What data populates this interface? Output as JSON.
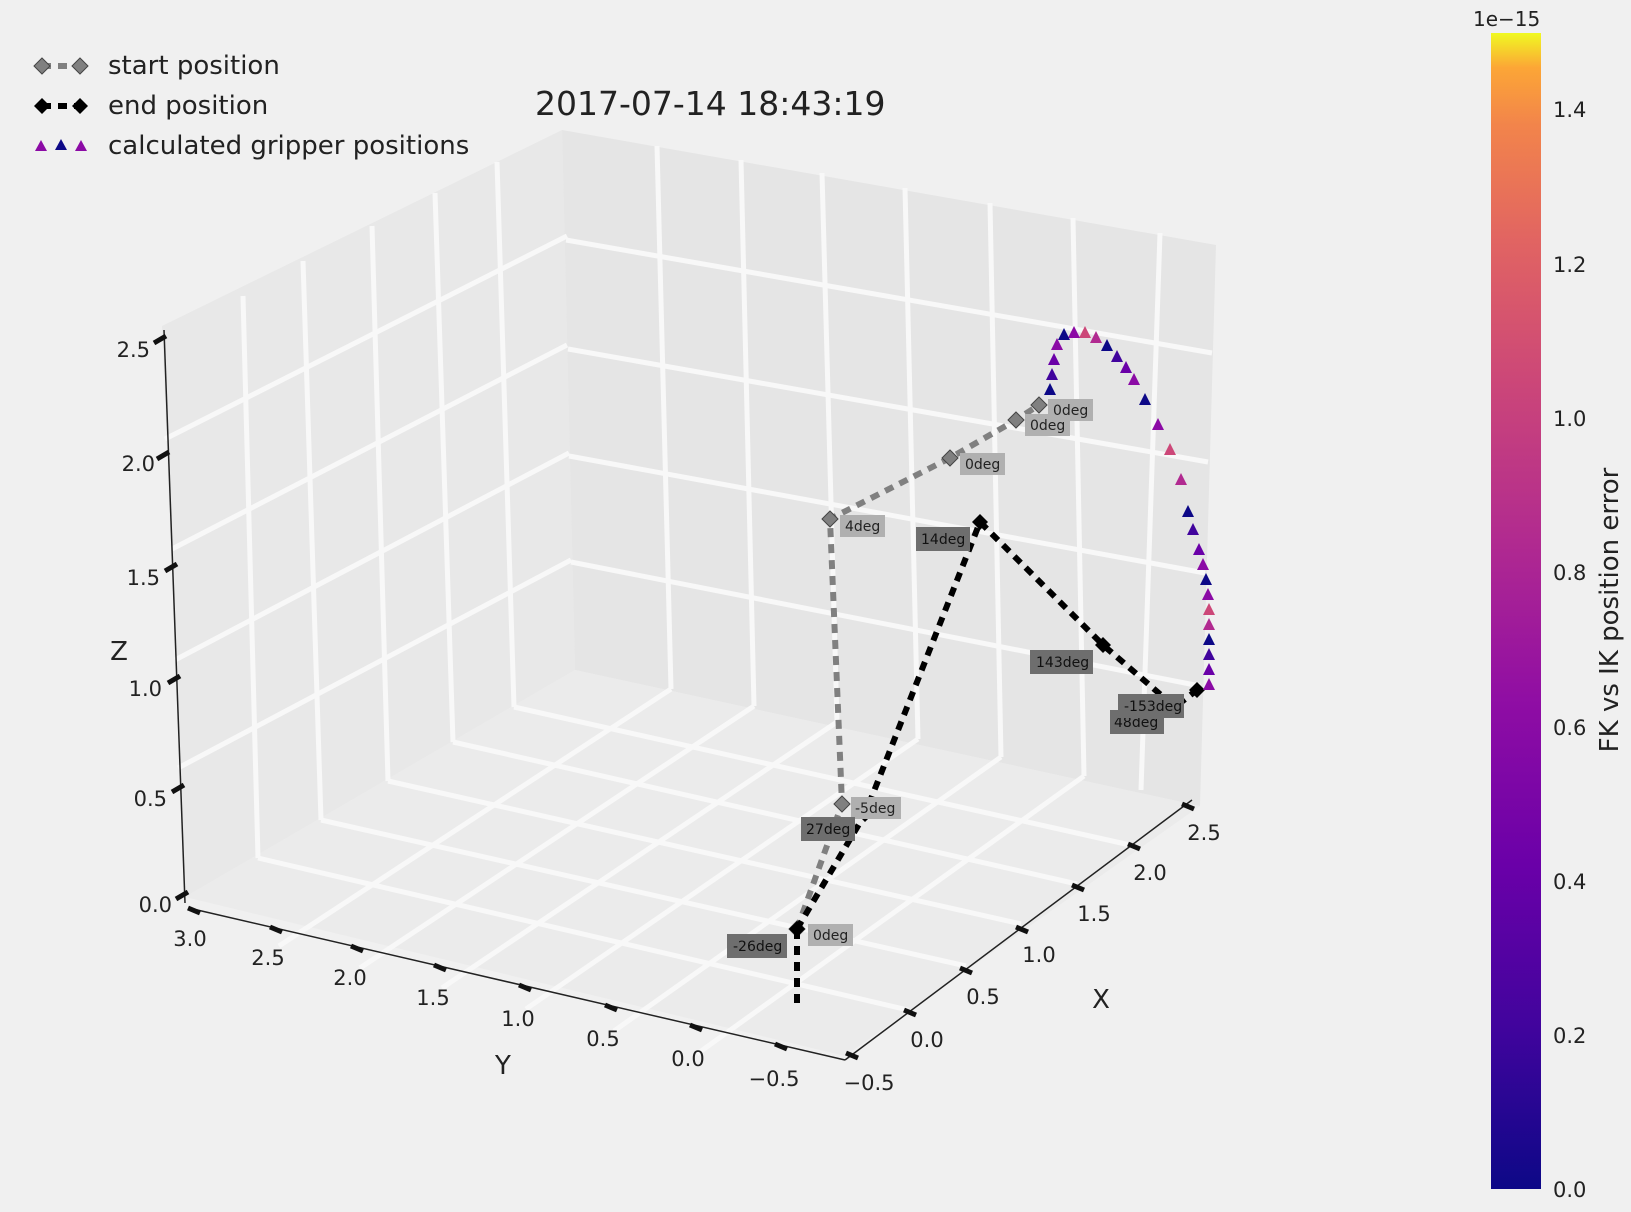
{
  "title": "2017-07-14 18:43:19",
  "legend": {
    "items": [
      {
        "label": "start position",
        "marker": "diamond-dashed",
        "color": "#808080"
      },
      {
        "label": "end position",
        "marker": "diamond-dashed",
        "color": "#000000"
      },
      {
        "label": "calculated gripper positions",
        "marker": "triangles",
        "colors": [
          "#8b0aa5",
          "#0d0887",
          "#8b0aa5"
        ]
      }
    ]
  },
  "colorbar": {
    "label": "FK vs IK position error",
    "exponent": "1e−15",
    "ticks": [
      "0.0",
      "0.2",
      "0.4",
      "0.6",
      "0.8",
      "1.0",
      "1.2",
      "1.4"
    ],
    "colormap": "plasma",
    "range": [
      0,
      1.5
    ]
  },
  "chart_data": {
    "type": "scatter3d",
    "title": "2017-07-14 18:43:19",
    "xlabel": "X",
    "ylabel": "Y",
    "zlabel": "Z",
    "xlim": [
      -0.5,
      2.5
    ],
    "ylim": [
      -0.5,
      3.0
    ],
    "zlim": [
      0.0,
      2.5
    ],
    "x_ticks": [
      "−0.5",
      "0.0",
      "0.5",
      "1.0",
      "1.5",
      "2.0",
      "2.5"
    ],
    "y_ticks": [
      "3.0",
      "2.5",
      "2.0",
      "1.5",
      "1.0",
      "0.5",
      "0.0",
      "−0.5"
    ],
    "z_ticks": [
      "0.0",
      "0.5",
      "1.0",
      "1.5",
      "2.0",
      "2.5"
    ],
    "grid": true,
    "legend_position": "top-left",
    "series": [
      {
        "name": "start position",
        "color": "#808080",
        "points": [
          [
            0,
            0,
            0
          ],
          [
            0,
            0,
            0.55
          ],
          [
            0,
            0,
            1.75
          ],
          [
            0.75,
            0,
            2.1
          ],
          [
            1.55,
            0,
            2.3
          ],
          [
            1.7,
            0,
            2.4
          ]
        ],
        "angle_labels": [
          "0deg",
          "-5deg",
          "4deg",
          "0deg",
          "0deg",
          "0deg"
        ]
      },
      {
        "name": "end position",
        "color": "#000000",
        "points": [
          [
            0,
            0,
            0
          ],
          [
            0.25,
            0,
            0.6
          ],
          [
            0.9,
            0,
            1.75
          ],
          [
            1.6,
            0,
            1.6
          ],
          [
            2.0,
            0,
            1.5
          ],
          [
            2.15,
            0,
            1.55
          ]
        ],
        "angle_labels": [
          "-26deg",
          "27deg",
          "14deg",
          "143deg",
          "48deg",
          "-153deg"
        ]
      },
      {
        "name": "calculated gripper positions",
        "marker": "triangle",
        "colormap": "plasma"
      }
    ]
  }
}
